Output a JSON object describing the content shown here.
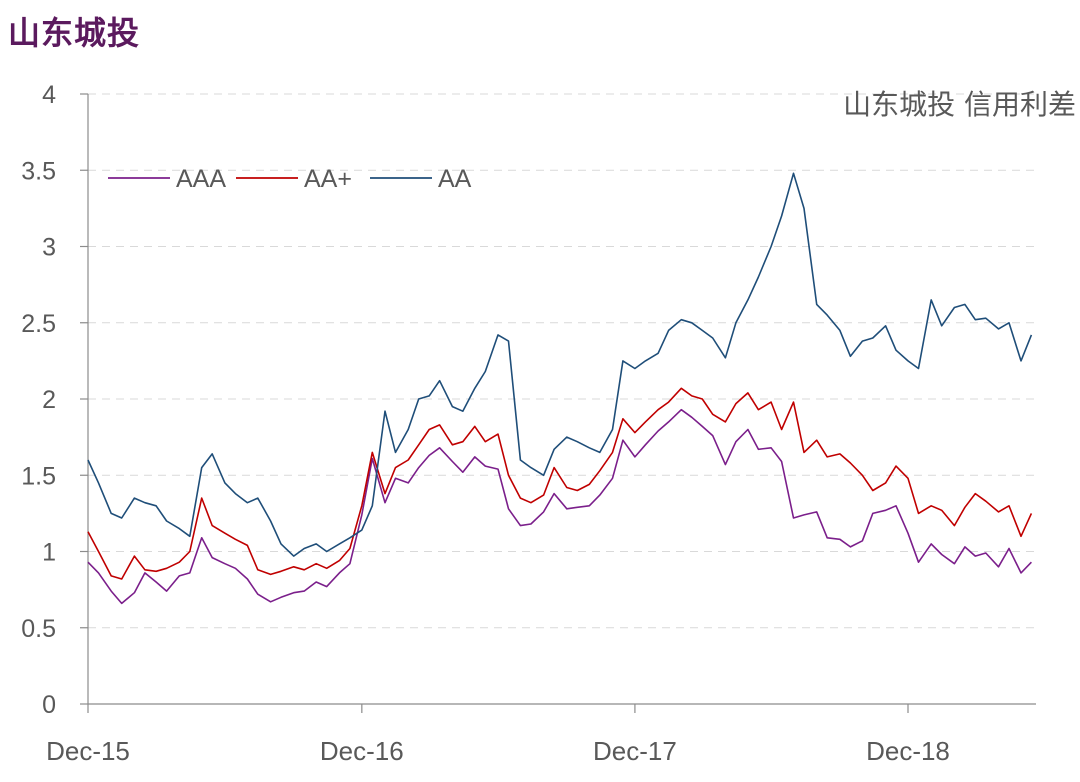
{
  "page": {
    "title": "山东城投"
  },
  "chart_data": {
    "type": "line",
    "title": "山东城投 信用利差",
    "xlabel": "",
    "ylabel": "",
    "x_range": [
      "2015-12",
      "2019-05"
    ],
    "ylim": [
      0,
      4
    ],
    "yticks": [
      "0",
      "0.5",
      "1",
      "1.5",
      "2",
      "2.5",
      "3",
      "3.5",
      "4"
    ],
    "xticks": [
      "Dec-15",
      "Dec-16",
      "Dec-17",
      "Dec-18"
    ],
    "grid": "horizontal-dashed",
    "legend_position": "top-left",
    "series": [
      {
        "name": "AAA",
        "color": "#7b1f8b",
        "values": [
          [
            "2015-12-01",
            0.93
          ],
          [
            "2015-12-15",
            0.86
          ],
          [
            "2016-01-01",
            0.74
          ],
          [
            "2016-01-15",
            0.66
          ],
          [
            "2016-02-01",
            0.73
          ],
          [
            "2016-02-15",
            0.86
          ],
          [
            "2016-03-01",
            0.8
          ],
          [
            "2016-03-15",
            0.74
          ],
          [
            "2016-04-01",
            0.84
          ],
          [
            "2016-04-15",
            0.86
          ],
          [
            "2016-05-01",
            1.09
          ],
          [
            "2016-05-15",
            0.96
          ],
          [
            "2016-06-01",
            0.92
          ],
          [
            "2016-06-15",
            0.89
          ],
          [
            "2016-07-01",
            0.82
          ],
          [
            "2016-07-15",
            0.72
          ],
          [
            "2016-08-01",
            0.67
          ],
          [
            "2016-08-15",
            0.7
          ],
          [
            "2016-09-01",
            0.73
          ],
          [
            "2016-09-15",
            0.74
          ],
          [
            "2016-10-01",
            0.8
          ],
          [
            "2016-10-15",
            0.77
          ],
          [
            "2016-11-01",
            0.86
          ],
          [
            "2016-11-15",
            0.92
          ],
          [
            "2016-12-01",
            1.24
          ],
          [
            "2016-12-15",
            1.61
          ],
          [
            "2017-01-01",
            1.32
          ],
          [
            "2017-01-15",
            1.48
          ],
          [
            "2017-02-01",
            1.45
          ],
          [
            "2017-02-15",
            1.55
          ],
          [
            "2017-03-01",
            1.63
          ],
          [
            "2017-03-15",
            1.68
          ],
          [
            "2017-04-01",
            1.59
          ],
          [
            "2017-04-15",
            1.52
          ],
          [
            "2017-05-01",
            1.62
          ],
          [
            "2017-05-15",
            1.56
          ],
          [
            "2017-06-01",
            1.54
          ],
          [
            "2017-06-15",
            1.28
          ],
          [
            "2017-07-01",
            1.17
          ],
          [
            "2017-07-15",
            1.18
          ],
          [
            "2017-08-01",
            1.26
          ],
          [
            "2017-08-15",
            1.38
          ],
          [
            "2017-09-01",
            1.28
          ],
          [
            "2017-09-15",
            1.29
          ],
          [
            "2017-10-01",
            1.3
          ],
          [
            "2017-10-15",
            1.37
          ],
          [
            "2017-11-01",
            1.48
          ],
          [
            "2017-11-15",
            1.73
          ],
          [
            "2017-12-01",
            1.62
          ],
          [
            "2017-12-15",
            1.7
          ],
          [
            "2018-01-01",
            1.79
          ],
          [
            "2018-01-15",
            1.85
          ],
          [
            "2018-02-01",
            1.93
          ],
          [
            "2018-02-15",
            1.88
          ],
          [
            "2018-03-01",
            1.82
          ],
          [
            "2018-03-15",
            1.76
          ],
          [
            "2018-04-01",
            1.57
          ],
          [
            "2018-04-15",
            1.72
          ],
          [
            "2018-05-01",
            1.8
          ],
          [
            "2018-05-15",
            1.67
          ],
          [
            "2018-06-01",
            1.68
          ],
          [
            "2018-06-15",
            1.59
          ],
          [
            "2018-07-01",
            1.22
          ],
          [
            "2018-07-15",
            1.24
          ],
          [
            "2018-08-01",
            1.26
          ],
          [
            "2018-08-15",
            1.09
          ],
          [
            "2018-09-01",
            1.08
          ],
          [
            "2018-09-15",
            1.03
          ],
          [
            "2018-10-01",
            1.07
          ],
          [
            "2018-10-15",
            1.25
          ],
          [
            "2018-11-01",
            1.27
          ],
          [
            "2018-11-15",
            1.3
          ],
          [
            "2018-12-01",
            1.12
          ],
          [
            "2018-12-15",
            0.93
          ],
          [
            "2019-01-01",
            1.05
          ],
          [
            "2019-01-15",
            0.98
          ],
          [
            "2019-02-01",
            0.92
          ],
          [
            "2019-02-15",
            1.03
          ],
          [
            "2019-03-01",
            0.97
          ],
          [
            "2019-03-15",
            0.99
          ],
          [
            "2019-04-01",
            0.9
          ],
          [
            "2019-04-15",
            1.02
          ],
          [
            "2019-05-01",
            0.86
          ],
          [
            "2019-05-15",
            0.93
          ]
        ]
      },
      {
        "name": "AA+",
        "color": "#c00000",
        "values": [
          [
            "2015-12-01",
            1.13
          ],
          [
            "2015-12-15",
            1.0
          ],
          [
            "2016-01-01",
            0.84
          ],
          [
            "2016-01-15",
            0.82
          ],
          [
            "2016-02-01",
            0.97
          ],
          [
            "2016-02-15",
            0.88
          ],
          [
            "2016-03-01",
            0.87
          ],
          [
            "2016-03-15",
            0.89
          ],
          [
            "2016-04-01",
            0.93
          ],
          [
            "2016-04-15",
            1.0
          ],
          [
            "2016-05-01",
            1.35
          ],
          [
            "2016-05-15",
            1.17
          ],
          [
            "2016-06-01",
            1.12
          ],
          [
            "2016-06-15",
            1.08
          ],
          [
            "2016-07-01",
            1.04
          ],
          [
            "2016-07-15",
            0.88
          ],
          [
            "2016-08-01",
            0.85
          ],
          [
            "2016-08-15",
            0.87
          ],
          [
            "2016-09-01",
            0.9
          ],
          [
            "2016-09-15",
            0.88
          ],
          [
            "2016-10-01",
            0.92
          ],
          [
            "2016-10-15",
            0.89
          ],
          [
            "2016-11-01",
            0.94
          ],
          [
            "2016-11-15",
            1.02
          ],
          [
            "2016-12-01",
            1.3
          ],
          [
            "2016-12-15",
            1.65
          ],
          [
            "2017-01-01",
            1.38
          ],
          [
            "2017-01-15",
            1.55
          ],
          [
            "2017-02-01",
            1.6
          ],
          [
            "2017-02-15",
            1.7
          ],
          [
            "2017-03-01",
            1.8
          ],
          [
            "2017-03-15",
            1.83
          ],
          [
            "2017-04-01",
            1.7
          ],
          [
            "2017-04-15",
            1.72
          ],
          [
            "2017-05-01",
            1.82
          ],
          [
            "2017-05-15",
            1.72
          ],
          [
            "2017-06-01",
            1.77
          ],
          [
            "2017-06-15",
            1.5
          ],
          [
            "2017-07-01",
            1.35
          ],
          [
            "2017-07-15",
            1.32
          ],
          [
            "2017-08-01",
            1.37
          ],
          [
            "2017-08-15",
            1.55
          ],
          [
            "2017-09-01",
            1.42
          ],
          [
            "2017-09-15",
            1.4
          ],
          [
            "2017-10-01",
            1.44
          ],
          [
            "2017-10-15",
            1.53
          ],
          [
            "2017-11-01",
            1.65
          ],
          [
            "2017-11-15",
            1.87
          ],
          [
            "2017-12-01",
            1.78
          ],
          [
            "2017-12-15",
            1.85
          ],
          [
            "2018-01-01",
            1.93
          ],
          [
            "2018-01-15",
            1.98
          ],
          [
            "2018-02-01",
            2.07
          ],
          [
            "2018-02-15",
            2.02
          ],
          [
            "2018-03-01",
            2.0
          ],
          [
            "2018-03-15",
            1.9
          ],
          [
            "2018-04-01",
            1.85
          ],
          [
            "2018-04-15",
            1.97
          ],
          [
            "2018-05-01",
            2.04
          ],
          [
            "2018-05-15",
            1.93
          ],
          [
            "2018-06-01",
            1.98
          ],
          [
            "2018-06-15",
            1.8
          ],
          [
            "2018-07-01",
            1.98
          ],
          [
            "2018-07-15",
            1.65
          ],
          [
            "2018-08-01",
            1.73
          ],
          [
            "2018-08-15",
            1.62
          ],
          [
            "2018-09-01",
            1.64
          ],
          [
            "2018-09-15",
            1.58
          ],
          [
            "2018-10-01",
            1.5
          ],
          [
            "2018-10-15",
            1.4
          ],
          [
            "2018-11-01",
            1.45
          ],
          [
            "2018-11-15",
            1.56
          ],
          [
            "2018-12-01",
            1.48
          ],
          [
            "2018-12-15",
            1.25
          ],
          [
            "2019-01-01",
            1.3
          ],
          [
            "2019-01-15",
            1.27
          ],
          [
            "2019-02-01",
            1.17
          ],
          [
            "2019-02-15",
            1.29
          ],
          [
            "2019-03-01",
            1.38
          ],
          [
            "2019-03-15",
            1.33
          ],
          [
            "2019-04-01",
            1.26
          ],
          [
            "2019-04-15",
            1.3
          ],
          [
            "2019-05-01",
            1.1
          ],
          [
            "2019-05-15",
            1.25
          ]
        ]
      },
      {
        "name": "AA",
        "color": "#1f4e79",
        "values": [
          [
            "2015-12-01",
            1.6
          ],
          [
            "2015-12-15",
            1.45
          ],
          [
            "2016-01-01",
            1.25
          ],
          [
            "2016-01-15",
            1.22
          ],
          [
            "2016-02-01",
            1.35
          ],
          [
            "2016-02-15",
            1.32
          ],
          [
            "2016-03-01",
            1.3
          ],
          [
            "2016-03-15",
            1.2
          ],
          [
            "2016-04-01",
            1.15
          ],
          [
            "2016-04-15",
            1.1
          ],
          [
            "2016-05-01",
            1.55
          ],
          [
            "2016-05-15",
            1.64
          ],
          [
            "2016-06-01",
            1.45
          ],
          [
            "2016-06-15",
            1.38
          ],
          [
            "2016-07-01",
            1.32
          ],
          [
            "2016-07-15",
            1.35
          ],
          [
            "2016-08-01",
            1.2
          ],
          [
            "2016-08-15",
            1.05
          ],
          [
            "2016-09-01",
            0.97
          ],
          [
            "2016-09-15",
            1.02
          ],
          [
            "2016-10-01",
            1.05
          ],
          [
            "2016-10-15",
            1.0
          ],
          [
            "2016-11-01",
            1.05
          ],
          [
            "2016-11-15",
            1.09
          ],
          [
            "2016-12-01",
            1.14
          ],
          [
            "2016-12-15",
            1.3
          ],
          [
            "2017-01-01",
            1.92
          ],
          [
            "2017-01-15",
            1.65
          ],
          [
            "2017-02-01",
            1.8
          ],
          [
            "2017-02-15",
            2.0
          ],
          [
            "2017-03-01",
            2.02
          ],
          [
            "2017-03-15",
            2.12
          ],
          [
            "2017-04-01",
            1.95
          ],
          [
            "2017-04-15",
            1.92
          ],
          [
            "2017-05-01",
            2.07
          ],
          [
            "2017-05-15",
            2.18
          ],
          [
            "2017-06-01",
            2.42
          ],
          [
            "2017-06-15",
            2.38
          ],
          [
            "2017-07-01",
            1.6
          ],
          [
            "2017-07-15",
            1.55
          ],
          [
            "2017-08-01",
            1.5
          ],
          [
            "2017-08-15",
            1.67
          ],
          [
            "2017-09-01",
            1.75
          ],
          [
            "2017-09-15",
            1.72
          ],
          [
            "2017-10-01",
            1.68
          ],
          [
            "2017-10-15",
            1.65
          ],
          [
            "2017-11-01",
            1.8
          ],
          [
            "2017-11-15",
            2.25
          ],
          [
            "2017-12-01",
            2.2
          ],
          [
            "2017-12-15",
            2.25
          ],
          [
            "2018-01-01",
            2.3
          ],
          [
            "2018-01-15",
            2.45
          ],
          [
            "2018-02-01",
            2.52
          ],
          [
            "2018-02-15",
            2.5
          ],
          [
            "2018-03-01",
            2.45
          ],
          [
            "2018-03-15",
            2.4
          ],
          [
            "2018-04-01",
            2.27
          ],
          [
            "2018-04-15",
            2.5
          ],
          [
            "2018-05-01",
            2.65
          ],
          [
            "2018-05-15",
            2.8
          ],
          [
            "2018-06-01",
            3.0
          ],
          [
            "2018-06-15",
            3.2
          ],
          [
            "2018-07-01",
            3.48
          ],
          [
            "2018-07-15",
            3.25
          ],
          [
            "2018-08-01",
            2.62
          ],
          [
            "2018-08-15",
            2.55
          ],
          [
            "2018-09-01",
            2.45
          ],
          [
            "2018-09-15",
            2.28
          ],
          [
            "2018-10-01",
            2.38
          ],
          [
            "2018-10-15",
            2.4
          ],
          [
            "2018-11-01",
            2.48
          ],
          [
            "2018-11-15",
            2.32
          ],
          [
            "2018-12-01",
            2.25
          ],
          [
            "2018-12-15",
            2.2
          ],
          [
            "2019-01-01",
            2.65
          ],
          [
            "2019-01-15",
            2.48
          ],
          [
            "2019-02-01",
            2.6
          ],
          [
            "2019-02-15",
            2.62
          ],
          [
            "2019-03-01",
            2.52
          ],
          [
            "2019-03-15",
            2.53
          ],
          [
            "2019-04-01",
            2.46
          ],
          [
            "2019-04-15",
            2.5
          ],
          [
            "2019-05-01",
            2.25
          ],
          [
            "2019-05-15",
            2.42
          ]
        ]
      }
    ]
  }
}
